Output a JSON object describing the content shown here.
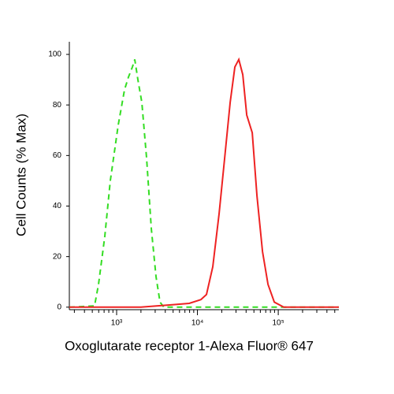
{
  "chart_data": {
    "type": "line",
    "x_label": "Oxoglutarate receptor 1-Alexa Fluor® 647",
    "y_label": "Cell Counts (% Max)",
    "xscale": "log",
    "xlim": [
      260,
      562000
    ],
    "ylim": [
      -1,
      105
    ],
    "xticks": [
      {
        "value": 1000,
        "label": "10³"
      },
      {
        "value": 10000,
        "label": "10⁴"
      },
      {
        "value": 100000,
        "label": "10⁵"
      }
    ],
    "xminorticks": [
      300,
      400,
      500,
      600,
      700,
      800,
      900,
      2000,
      3000,
      4000,
      5000,
      6000,
      7000,
      8000,
      9000,
      20000,
      30000,
      40000,
      50000,
      60000,
      70000,
      80000,
      90000,
      200000,
      300000,
      400000,
      500000
    ],
    "yticks": [
      0,
      20,
      40,
      60,
      80,
      100
    ],
    "series": [
      {
        "color": "#33dd22",
        "dash": "dashed",
        "x": [
          260,
          533,
          597,
          714,
          835,
          1046,
          1252,
          1400,
          1567,
          1677,
          1833,
          2051,
          2348,
          2688,
          3075,
          3443,
          3848,
          562000
        ],
        "values": [
          0,
          0.5,
          9,
          28,
          50,
          72,
          86,
          91,
          95,
          98,
          90,
          81,
          59,
          31,
          12,
          2,
          0,
          0
        ]
      },
      {
        "color": "#ee2222",
        "dash": "solid",
        "x": [
          260,
          2000,
          5040,
          7910,
          11070,
          12940,
          15490,
          18540,
          21720,
          25410,
          29040,
          32510,
          36390,
          40740,
          47670,
          54540,
          63850,
          74690,
          89390,
          116900,
          562000
        ],
        "values": [
          0,
          0,
          1,
          1.5,
          3,
          5,
          16,
          37,
          59,
          81,
          95,
          98,
          92,
          76,
          69,
          44,
          22,
          9,
          2,
          0,
          0
        ]
      }
    ]
  }
}
